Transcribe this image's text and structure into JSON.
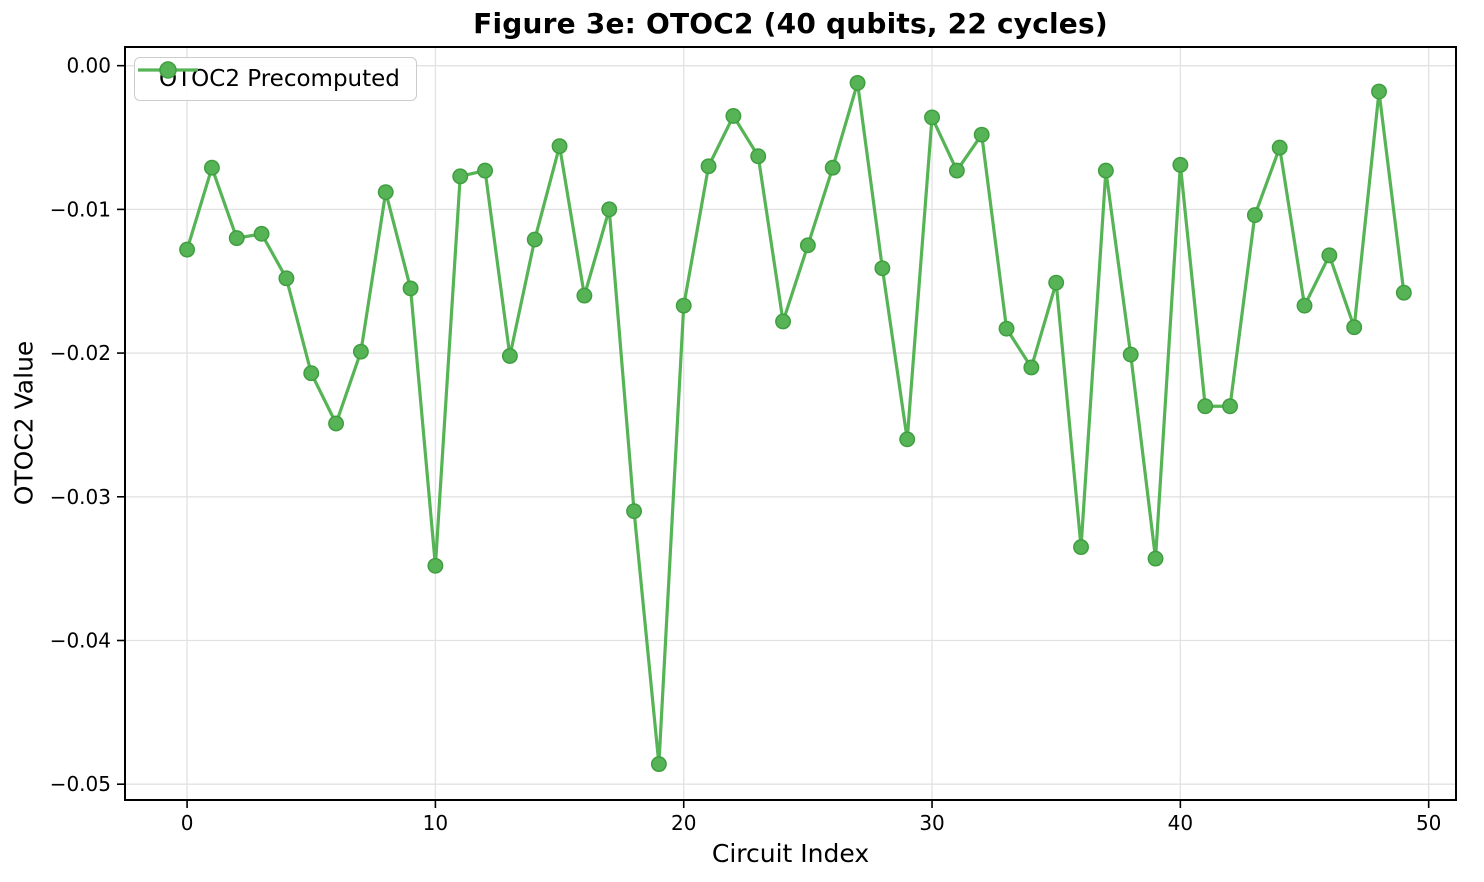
{
  "chart_data": {
    "type": "line",
    "title": "Figure 3e: OTOC2 (40 qubits, 22 cycles)",
    "xlabel": "Circuit Index",
    "ylabel": "OTOC2 Value",
    "grid": true,
    "legend": {
      "position": "upper-left",
      "entries": [
        {
          "label": "OTOC2 Precomputed",
          "marker": "circle",
          "color": "#56b456"
        }
      ]
    },
    "xlim": [
      -2.5,
      51.1
    ],
    "ylim": [
      -0.0511,
      0.0013
    ],
    "xticks": {
      "values": [
        0,
        10,
        20,
        30,
        40,
        50
      ],
      "labels": [
        "0",
        "10",
        "20",
        "30",
        "40",
        "50"
      ]
    },
    "yticks": {
      "values": [
        0,
        -0.01,
        -0.02,
        -0.03,
        -0.04,
        -0.05
      ],
      "labels": [
        "0.00",
        "−0.01",
        "−0.02",
        "−0.03",
        "−0.04",
        "−0.05"
      ]
    },
    "series": [
      {
        "name": "OTOC2 Precomputed",
        "x": [
          0,
          1,
          2,
          3,
          4,
          5,
          6,
          7,
          8,
          9,
          10,
          11,
          12,
          13,
          14,
          15,
          16,
          17,
          18,
          19,
          20,
          21,
          22,
          23,
          24,
          25,
          26,
          27,
          28,
          29,
          30,
          31,
          32,
          33,
          34,
          35,
          36,
          37,
          38,
          39,
          40,
          41,
          42,
          43,
          44,
          45,
          46,
          47,
          48,
          49
        ],
        "values": [
          -0.0128,
          -0.0071,
          -0.012,
          -0.0117,
          -0.0148,
          -0.0214,
          -0.0249,
          -0.0199,
          -0.0088,
          -0.0155,
          -0.0348,
          -0.0077,
          -0.0073,
          -0.0202,
          -0.0121,
          -0.0056,
          -0.016,
          -0.01,
          -0.031,
          -0.0486,
          -0.0167,
          -0.007,
          -0.0035,
          -0.0063,
          -0.0178,
          -0.0125,
          -0.0071,
          -0.0012,
          -0.0141,
          -0.026,
          -0.0036,
          -0.0073,
          -0.0048,
          -0.0183,
          -0.021,
          -0.0151,
          -0.0335,
          -0.0073,
          -0.0201,
          -0.0343,
          -0.0069,
          -0.0237,
          -0.0237,
          -0.0104,
          -0.0057,
          -0.0167,
          -0.0132,
          -0.0182,
          -0.0018,
          -0.0158
        ]
      }
    ],
    "colors": {
      "line": "#56b456",
      "marker_fill": "#56b456",
      "marker_edge": "#3f9e3f",
      "grid": "#e2e2e2",
      "axis": "#000000",
      "background": "#ffffff",
      "legend_border": "#cccccc"
    }
  }
}
